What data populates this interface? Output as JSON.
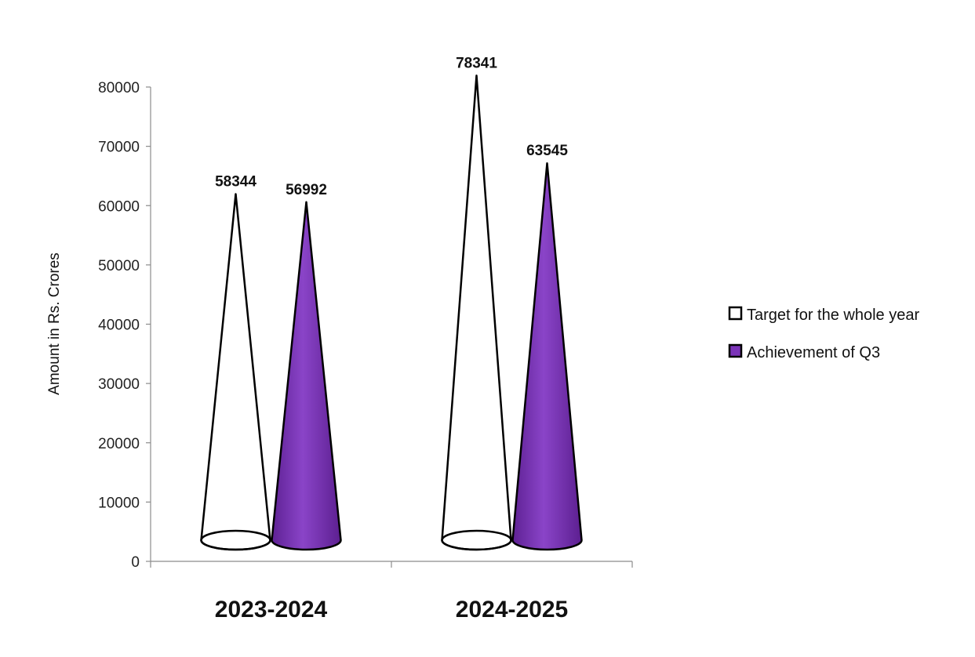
{
  "chart_data": {
    "type": "bar",
    "bar_shape": "cone",
    "title": "",
    "xlabel": "",
    "ylabel": "Amount in Rs. Crores",
    "categories": [
      "2023-2024",
      "2024-2025"
    ],
    "series": [
      {
        "name": "Target for the whole year",
        "values": [
          58344,
          78341
        ],
        "fill": "#ffffff",
        "stroke": "#000000"
      },
      {
        "name": "Achievement of Q3",
        "values": [
          56992,
          63545
        ],
        "fill": "#7b33b8",
        "stroke": "#000000"
      }
    ],
    "ylim": [
      0,
      80000
    ],
    "yticks": [
      0,
      10000,
      20000,
      30000,
      40000,
      50000,
      60000,
      70000,
      80000
    ],
    "grid": false,
    "legend_position": "right",
    "data_labels": true
  }
}
